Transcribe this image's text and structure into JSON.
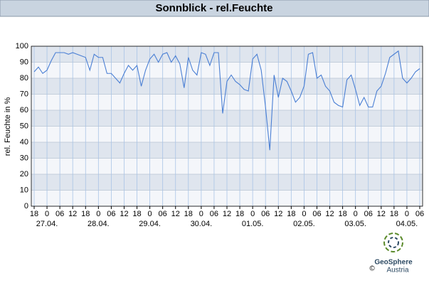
{
  "chart_data": {
    "type": "line",
    "title": "Sonnblick - rel.Feuchte",
    "y_label": "rel. Feuchte in %",
    "series": [
      {
        "name": "rel.Feuchte",
        "color": "#4a7fd4",
        "values": [
          84,
          87,
          83,
          85,
          91,
          96,
          96,
          96,
          95,
          96,
          95,
          94,
          93,
          85,
          95,
          93,
          93,
          83,
          83,
          80,
          77,
          83,
          88,
          85,
          88,
          75,
          85,
          92,
          95,
          90,
          95,
          96,
          90,
          94,
          89,
          74,
          93,
          85,
          82,
          96,
          95,
          88,
          96,
          96,
          58,
          78,
          82,
          78,
          76,
          73,
          72,
          92,
          95,
          85,
          62,
          35,
          82,
          68,
          80,
          78,
          72,
          65,
          68,
          75,
          95,
          96,
          80,
          82,
          75,
          72,
          65,
          63,
          62,
          79,
          82,
          73,
          63,
          68,
          62,
          62,
          72,
          75,
          83,
          93,
          95,
          97,
          80,
          77,
          80,
          84,
          86
        ]
      }
    ],
    "xlim": [
      0,
      90
    ],
    "xticks": [
      {
        "value": 0,
        "label": "18"
      },
      {
        "value": 3,
        "label": "0"
      },
      {
        "value": 6,
        "label": "06"
      },
      {
        "value": 9,
        "label": "12"
      },
      {
        "value": 12,
        "label": "18"
      },
      {
        "value": 15,
        "label": "0"
      },
      {
        "value": 18,
        "label": "06"
      },
      {
        "value": 21,
        "label": "12"
      },
      {
        "value": 24,
        "label": "18"
      },
      {
        "value": 27,
        "label": "0"
      },
      {
        "value": 30,
        "label": "06"
      },
      {
        "value": 33,
        "label": "12"
      },
      {
        "value": 36,
        "label": "18"
      },
      {
        "value": 39,
        "label": "0"
      },
      {
        "value": 42,
        "label": "06"
      },
      {
        "value": 45,
        "label": "12"
      },
      {
        "value": 48,
        "label": "18"
      },
      {
        "value": 51,
        "label": "0"
      },
      {
        "value": 54,
        "label": "06"
      },
      {
        "value": 57,
        "label": "12"
      },
      {
        "value": 60,
        "label": "18"
      },
      {
        "value": 63,
        "label": "0"
      },
      {
        "value": 66,
        "label": "06"
      },
      {
        "value": 69,
        "label": "12"
      },
      {
        "value": 72,
        "label": "18"
      },
      {
        "value": 75,
        "label": "0"
      },
      {
        "value": 78,
        "label": "06"
      },
      {
        "value": 81,
        "label": "12"
      },
      {
        "value": 84,
        "label": "18"
      },
      {
        "value": 87,
        "label": "0"
      },
      {
        "value": 90,
        "label": "06"
      }
    ],
    "xdates": [
      {
        "value": 3,
        "label": "27.04."
      },
      {
        "value": 15,
        "label": "28.04."
      },
      {
        "value": 27,
        "label": "29.04."
      },
      {
        "value": 39,
        "label": "30.04."
      },
      {
        "value": 51,
        "label": "01.05."
      },
      {
        "value": 63,
        "label": "02.05."
      },
      {
        "value": 75,
        "label": "03.05."
      },
      {
        "value": 87,
        "label": "04.05."
      }
    ],
    "ylim": [
      0,
      100
    ],
    "yticks": [
      0,
      10,
      20,
      30,
      40,
      50,
      60,
      70,
      80,
      90,
      100
    ],
    "grid": true,
    "bands": true
  },
  "footer": {
    "copyright": "©",
    "brand": "GeoSphere",
    "country": "Austria"
  }
}
